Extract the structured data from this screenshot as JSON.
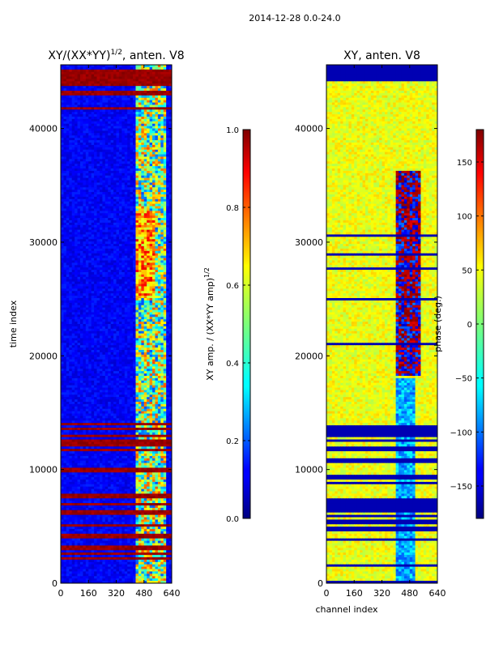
{
  "suptitle": "2014-12-28 0.0-24.0",
  "chart_data": [
    {
      "type": "heatmap",
      "title_base": "XY/(XX*YY)",
      "title_exponent": "1/2",
      "title_suffix": ", anten. V8",
      "xlabel": "",
      "ylabel": "time index",
      "xlim": [
        0,
        640
      ],
      "ylim": [
        0,
        45600
      ],
      "xticks": [
        "0",
        "160",
        "320",
        "480",
        "640"
      ],
      "yticks": [
        "0",
        "10000",
        "20000",
        "30000",
        "40000"
      ],
      "colormap": "jet",
      "colorbar": {
        "label_base": "XY amp. / (XX*YY amp)",
        "label_exponent": "1/2",
        "range": [
          0.0,
          1.0
        ],
        "ticks": [
          "0.0",
          "0.2",
          "0.4",
          "0.6",
          "0.8",
          "1.0"
        ]
      }
    },
    {
      "type": "heatmap",
      "title": "XY, anten. V8",
      "xlabel": "channel index",
      "ylabel": "",
      "xlim": [
        0,
        640
      ],
      "ylim": [
        0,
        45600
      ],
      "xticks": [
        "0",
        "160",
        "320",
        "480",
        "640"
      ],
      "yticks": [
        "0",
        "10000",
        "20000",
        "30000",
        "40000"
      ],
      "colormap": "jet",
      "colorbar": {
        "label": "phase (deg.)",
        "range": [
          -180,
          180
        ],
        "ticks": [
          "−150",
          "−100",
          "−50",
          "0",
          "50",
          "100",
          "150"
        ]
      }
    }
  ]
}
